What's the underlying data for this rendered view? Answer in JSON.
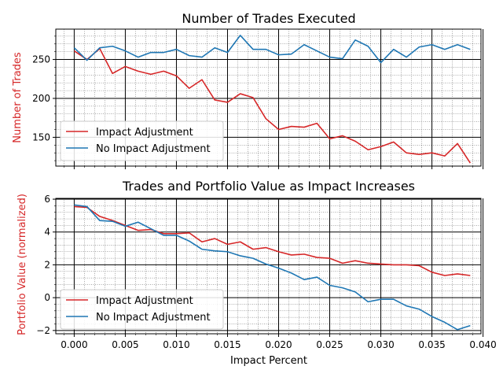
{
  "colors": {
    "impact": "#d62728",
    "no_impact": "#1f77b4",
    "ylabel": "#d62728",
    "major_grid": "#000000",
    "minor_grid": "#555555"
  },
  "chart_data": [
    {
      "type": "line",
      "title": "Number of Trades Executed",
      "ylabel": "Number of Trades",
      "xlabel": "",
      "xlim": [
        -0.0018,
        0.0398
      ],
      "ylim": [
        113,
        289
      ],
      "yticks": [
        150,
        200,
        250
      ],
      "ytick_labels": [
        "150",
        "200",
        "250"
      ],
      "xticks": [
        0.0,
        0.005,
        0.01,
        0.015,
        0.02,
        0.025,
        0.03,
        0.035,
        0.04
      ],
      "grid": true,
      "legend_position": "lower-left",
      "x": [
        0.0,
        0.00125,
        0.0025,
        0.00375,
        0.005,
        0.00625,
        0.0075,
        0.00875,
        0.01,
        0.01125,
        0.0125,
        0.01375,
        0.015,
        0.01625,
        0.0175,
        0.01875,
        0.02,
        0.02125,
        0.0225,
        0.02375,
        0.025,
        0.02625,
        0.0275,
        0.02875,
        0.03,
        0.03125,
        0.0325,
        0.03375,
        0.035,
        0.03625,
        0.0375,
        0.03875
      ],
      "series": [
        {
          "name": "Impact Adjustment",
          "color_key": "impact",
          "values": [
            261,
            250,
            264,
            232,
            241,
            235,
            231,
            235,
            229,
            213,
            224,
            198,
            195,
            206,
            201,
            174,
            160,
            164,
            163,
            168,
            148,
            152,
            145,
            134,
            138,
            144,
            130,
            128,
            130,
            126,
            142,
            117
          ]
        },
        {
          "name": "No Impact Adjustment",
          "color_key": "no_impact",
          "values": [
            265,
            249,
            265,
            267,
            261,
            253,
            259,
            259,
            263,
            255,
            253,
            265,
            259,
            281,
            263,
            263,
            256,
            257,
            269,
            261,
            253,
            251,
            275,
            267,
            246,
            263,
            253,
            266,
            269,
            263,
            269,
            263
          ]
        }
      ]
    },
    {
      "type": "line",
      "title": "Trades and Portfolio Value as Impact Increases",
      "ylabel": "Portfolio Value (normalized)",
      "xlabel": "Impact Percent",
      "xlim": [
        -0.0018,
        0.0398
      ],
      "ylim": [
        -2.2,
        6.05
      ],
      "yticks": [
        -2,
        0,
        2,
        4,
        6
      ],
      "ytick_labels": [
        "−2",
        "0",
        "2",
        "4",
        "6"
      ],
      "xticks": [
        0.0,
        0.005,
        0.01,
        0.015,
        0.02,
        0.025,
        0.03,
        0.035,
        0.04
      ],
      "xtick_labels": [
        "0.000",
        "0.005",
        "0.010",
        "0.015",
        "0.020",
        "0.025",
        "0.030",
        "0.035",
        "0.040"
      ],
      "grid": true,
      "legend_position": "lower-left",
      "x": [
        0.0,
        0.00125,
        0.0025,
        0.00375,
        0.005,
        0.00625,
        0.0075,
        0.00875,
        0.01,
        0.01125,
        0.0125,
        0.01375,
        0.015,
        0.01625,
        0.0175,
        0.01875,
        0.02,
        0.02125,
        0.0225,
        0.02375,
        0.025,
        0.02625,
        0.0275,
        0.02875,
        0.03,
        0.03125,
        0.0325,
        0.03375,
        0.035,
        0.03625,
        0.0375,
        0.03875
      ],
      "series": [
        {
          "name": "Impact Adjustment",
          "color_key": "impact",
          "values": [
            5.55,
            5.5,
            4.95,
            4.7,
            4.4,
            4.1,
            4.15,
            3.9,
            3.9,
            3.95,
            3.4,
            3.6,
            3.25,
            3.4,
            2.95,
            3.05,
            2.8,
            2.6,
            2.65,
            2.45,
            2.4,
            2.1,
            2.25,
            2.1,
            2.05,
            2.0,
            2.0,
            1.95,
            1.55,
            1.35,
            1.45,
            1.35
          ]
        },
        {
          "name": "No Impact Adjustment",
          "color_key": "no_impact",
          "values": [
            5.65,
            5.55,
            4.7,
            4.65,
            4.35,
            4.6,
            4.2,
            3.8,
            3.8,
            3.45,
            2.95,
            2.85,
            2.8,
            2.55,
            2.4,
            2.05,
            1.8,
            1.5,
            1.1,
            1.25,
            0.75,
            0.6,
            0.35,
            -0.25,
            -0.1,
            -0.1,
            -0.5,
            -0.7,
            -1.15,
            -1.5,
            -1.95,
            -1.7
          ]
        }
      ]
    }
  ]
}
